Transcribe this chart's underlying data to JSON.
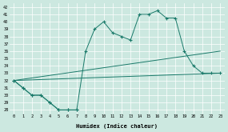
{
  "background_color": "#cce8e0",
  "grid_color": "#b0d8d0",
  "line_color": "#1a7a6a",
  "xlabel": "Humidex (Indice chaleur)",
  "xlim": [
    -0.5,
    23.5
  ],
  "ylim": [
    27.5,
    42.5
  ],
  "xticks": [
    0,
    1,
    2,
    3,
    4,
    5,
    6,
    7,
    8,
    9,
    10,
    11,
    12,
    13,
    14,
    15,
    16,
    17,
    18,
    19,
    20,
    21,
    22,
    23
  ],
  "yticks": [
    28,
    29,
    30,
    31,
    32,
    33,
    34,
    35,
    36,
    37,
    38,
    39,
    40,
    41,
    42
  ],
  "line1": {
    "x": [
      0,
      1,
      2,
      3,
      4,
      5,
      6,
      7
    ],
    "y": [
      32,
      31,
      30,
      30,
      29,
      28,
      28,
      28
    ]
  },
  "line2": {
    "x": [
      0,
      1,
      2,
      3,
      4,
      5,
      6,
      7,
      8,
      9,
      10,
      11,
      12,
      13,
      14,
      15,
      16,
      17,
      18,
      19,
      20,
      21,
      22,
      23
    ],
    "y": [
      32,
      31,
      30,
      30,
      29,
      28,
      28,
      28,
      36,
      39,
      40,
      38.5,
      38,
      37.5,
      41,
      41,
      41.5,
      40.5,
      40.5,
      36,
      34,
      33,
      33,
      33
    ]
  },
  "line3": {
    "x": [
      0,
      23
    ],
    "y": [
      32,
      36
    ]
  },
  "line4": {
    "x": [
      0,
      23
    ],
    "y": [
      32,
      33
    ]
  }
}
